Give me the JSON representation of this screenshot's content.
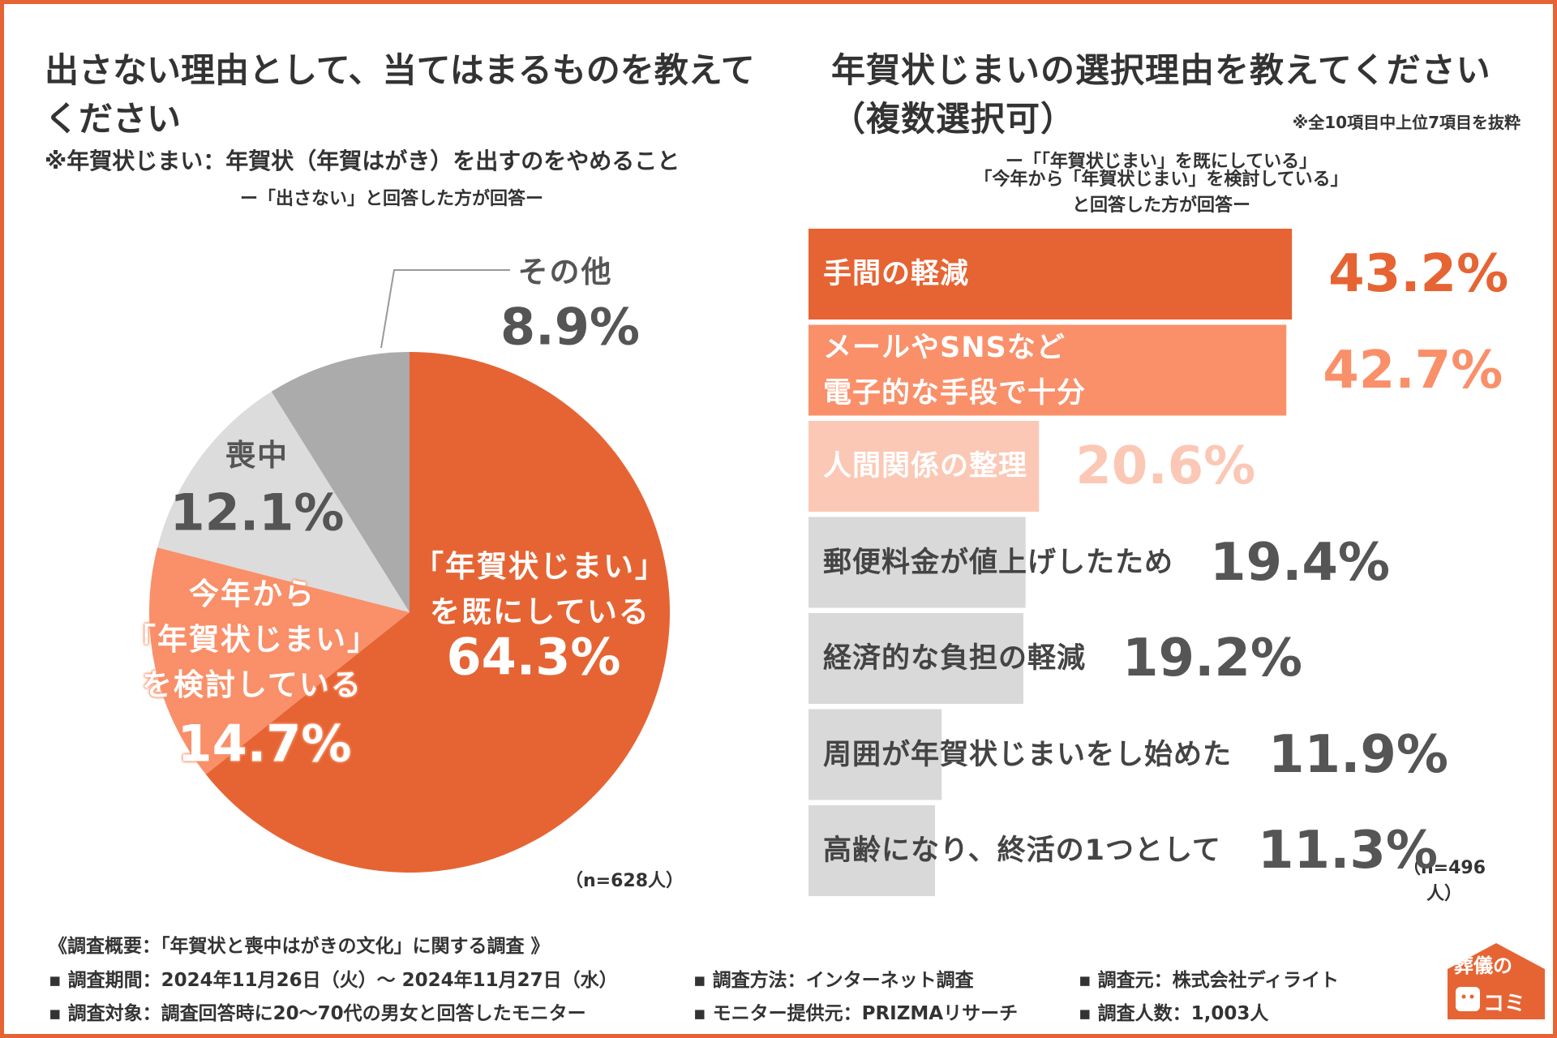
{
  "chart_data": [
    {
      "type": "pie",
      "title": "出さない理由として、当てはまるものを教えて\nください",
      "subtitle": "※年賀状じまい：年賀状（年賀はがき）を出すのをやめること",
      "note": "ー「出さない」と回答した方が回答ー",
      "categories": [
        "「年賀状じまい」\nを既にしている",
        "今年から\n「年賀状じまい」\nを検討している",
        "喪中",
        "その他"
      ],
      "values": [
        64.3,
        14.7,
        12.1,
        8.9
      ],
      "value_labels": [
        "64.3%",
        "14.7%",
        "12.1%",
        "8.9%"
      ],
      "colors": [
        "#E66433",
        "#F9906A",
        "#DCDCDC",
        "#ABABAB"
      ],
      "sample": "（n=628人）"
    },
    {
      "type": "bar",
      "title": "年賀状じまいの選択理由を教えてください\n（複数選択可）",
      "remark": "※全10項目中上位7項目を抜粋",
      "subtitle": "ー「「年賀状じまい」を既にしている」",
      "note": "「今年から「年賀状じまい」を検討している」と回答した方が回答ー",
      "categories": [
        "手間の軽減",
        "メールやSNSなど\n電子的な手段で十分",
        "人間関係の整理",
        "郵便料金が値上げしたため",
        "経済的な負担の軽減",
        "周囲が年賀状じまいをし始めた",
        "高齢になり、終活の1つとして"
      ],
      "values": [
        43.2,
        42.7,
        20.6,
        19.4,
        19.2,
        11.9,
        11.3
      ],
      "value_labels": [
        "43.2%",
        "42.7%",
        "20.6%",
        "19.4%",
        "19.2%",
        "11.9%",
        "11.3%"
      ],
      "colors": [
        "#E66433",
        "#F9906A",
        "#FBC8B5",
        "#D9D9D9",
        "#D9D9D9",
        "#D9D9D9",
        "#D9D9D9"
      ],
      "label_colors": [
        "#E66433",
        "#F9906A",
        "#FBC8B5",
        "#555555",
        "#555555",
        "#555555",
        "#555555"
      ],
      "text_colors": [
        "#ffffff",
        "#ffffff",
        "#ffffff",
        "#444444",
        "#444444",
        "#444444",
        "#444444"
      ],
      "sample": "（n=496人）"
    }
  ],
  "footer": {
    "heading": "《調査概要：「年賀状と喪中はがきの文化」に関する調査 》",
    "items": [
      "調査期間：2024年11月26日（火）～ 2024年11月27日（水）",
      "調査方法：インターネット調査",
      "調査元：株式会社ディライト",
      "調査対象：調査回答時に20〜70代の男女と回答したモニター",
      "モニター提供元：PRIZMAリサーチ",
      "調査人数：1,003人"
    ],
    "logo": [
      "葬儀の",
      "コミ"
    ]
  }
}
